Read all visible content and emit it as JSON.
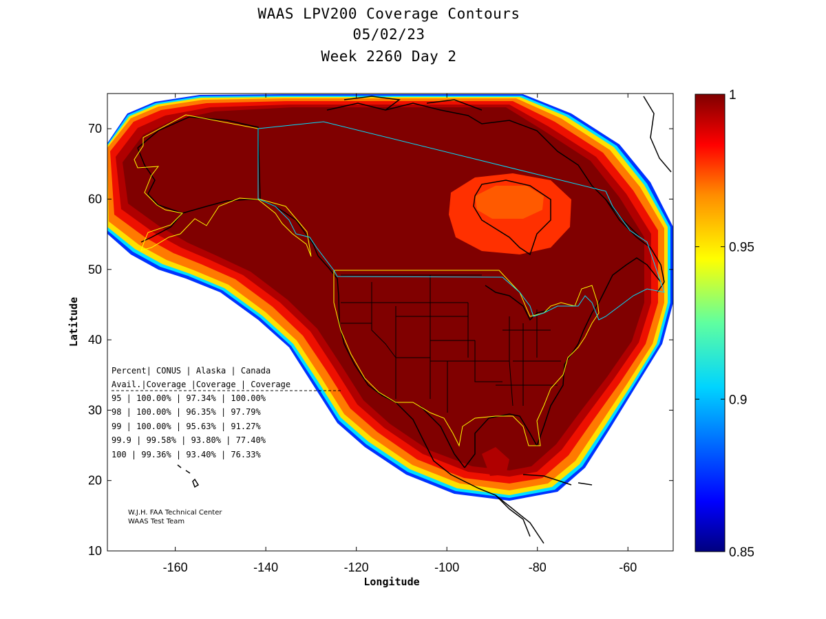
{
  "title": {
    "line1": "WAAS LPV200 Coverage Contours",
    "line2": "05/02/23",
    "line3": "Week 2260 Day 2"
  },
  "axes": {
    "xlabel": "Longitude",
    "ylabel": "Latitude",
    "xticks": [
      "-160",
      "-140",
      "-120",
      "-100",
      "-80",
      "-60"
    ],
    "yticks": [
      "10",
      "20",
      "30",
      "40",
      "50",
      "60",
      "70"
    ],
    "xlim": [
      -175,
      -50
    ],
    "ylim": [
      10,
      75
    ]
  },
  "colorbar": {
    "ticks": [
      "1",
      "0.95",
      "0.9",
      "0.85"
    ],
    "range": [
      0.85,
      1
    ],
    "colormap": "jet",
    "colors": [
      "#00007f",
      "#0000ff",
      "#007fff",
      "#00ffff",
      "#7fff7f",
      "#ffff00",
      "#ff7f00",
      "#ff0000",
      "#7f0000"
    ]
  },
  "coverage_table": {
    "header1": "Percent| CONUS   | Alaska  | Canada",
    "header2": " Avail.|Coverage |Coverage | Coverage",
    "rows": [
      "  95   | 100.00%  | 97.34% | 100.00%",
      "  98   | 100.00%  | 96.35% | 97.79%",
      "  99   | 100.00%  | 95.63% | 91.27%",
      "99.9   | 99.58%   | 93.80% | 77.40%",
      " 100   | 99.36%   | 93.40% | 76.33%"
    ]
  },
  "credit": {
    "line1": "W.J.H. FAA Technical Center",
    "line2": "WAAS Test Team"
  },
  "chart_data": {
    "type": "heatmap",
    "title": "WAAS LPV200 Coverage Contours",
    "subtitle": [
      "05/02/23",
      "Week 2260 Day 2"
    ],
    "xlabel": "Longitude",
    "ylabel": "Latitude",
    "xlim": [
      -175,
      -50
    ],
    "ylim": [
      10,
      75
    ],
    "colorbar_range": [
      0.85,
      1
    ],
    "table": {
      "columns": [
        "Percent Avail.",
        "CONUS Coverage",
        "Alaska Coverage",
        "Canada Coverage"
      ],
      "rows": [
        [
          "95",
          "100.00%",
          "97.34%",
          "100.00%"
        ],
        [
          "98",
          "100.00%",
          "96.35%",
          "97.79%"
        ],
        [
          "99",
          "100.00%",
          "95.63%",
          "91.27%"
        ],
        [
          "99.9",
          "99.58%",
          "93.80%",
          "77.40%"
        ],
        [
          "100",
          "99.36%",
          "93.40%",
          "76.33%"
        ]
      ]
    }
  }
}
